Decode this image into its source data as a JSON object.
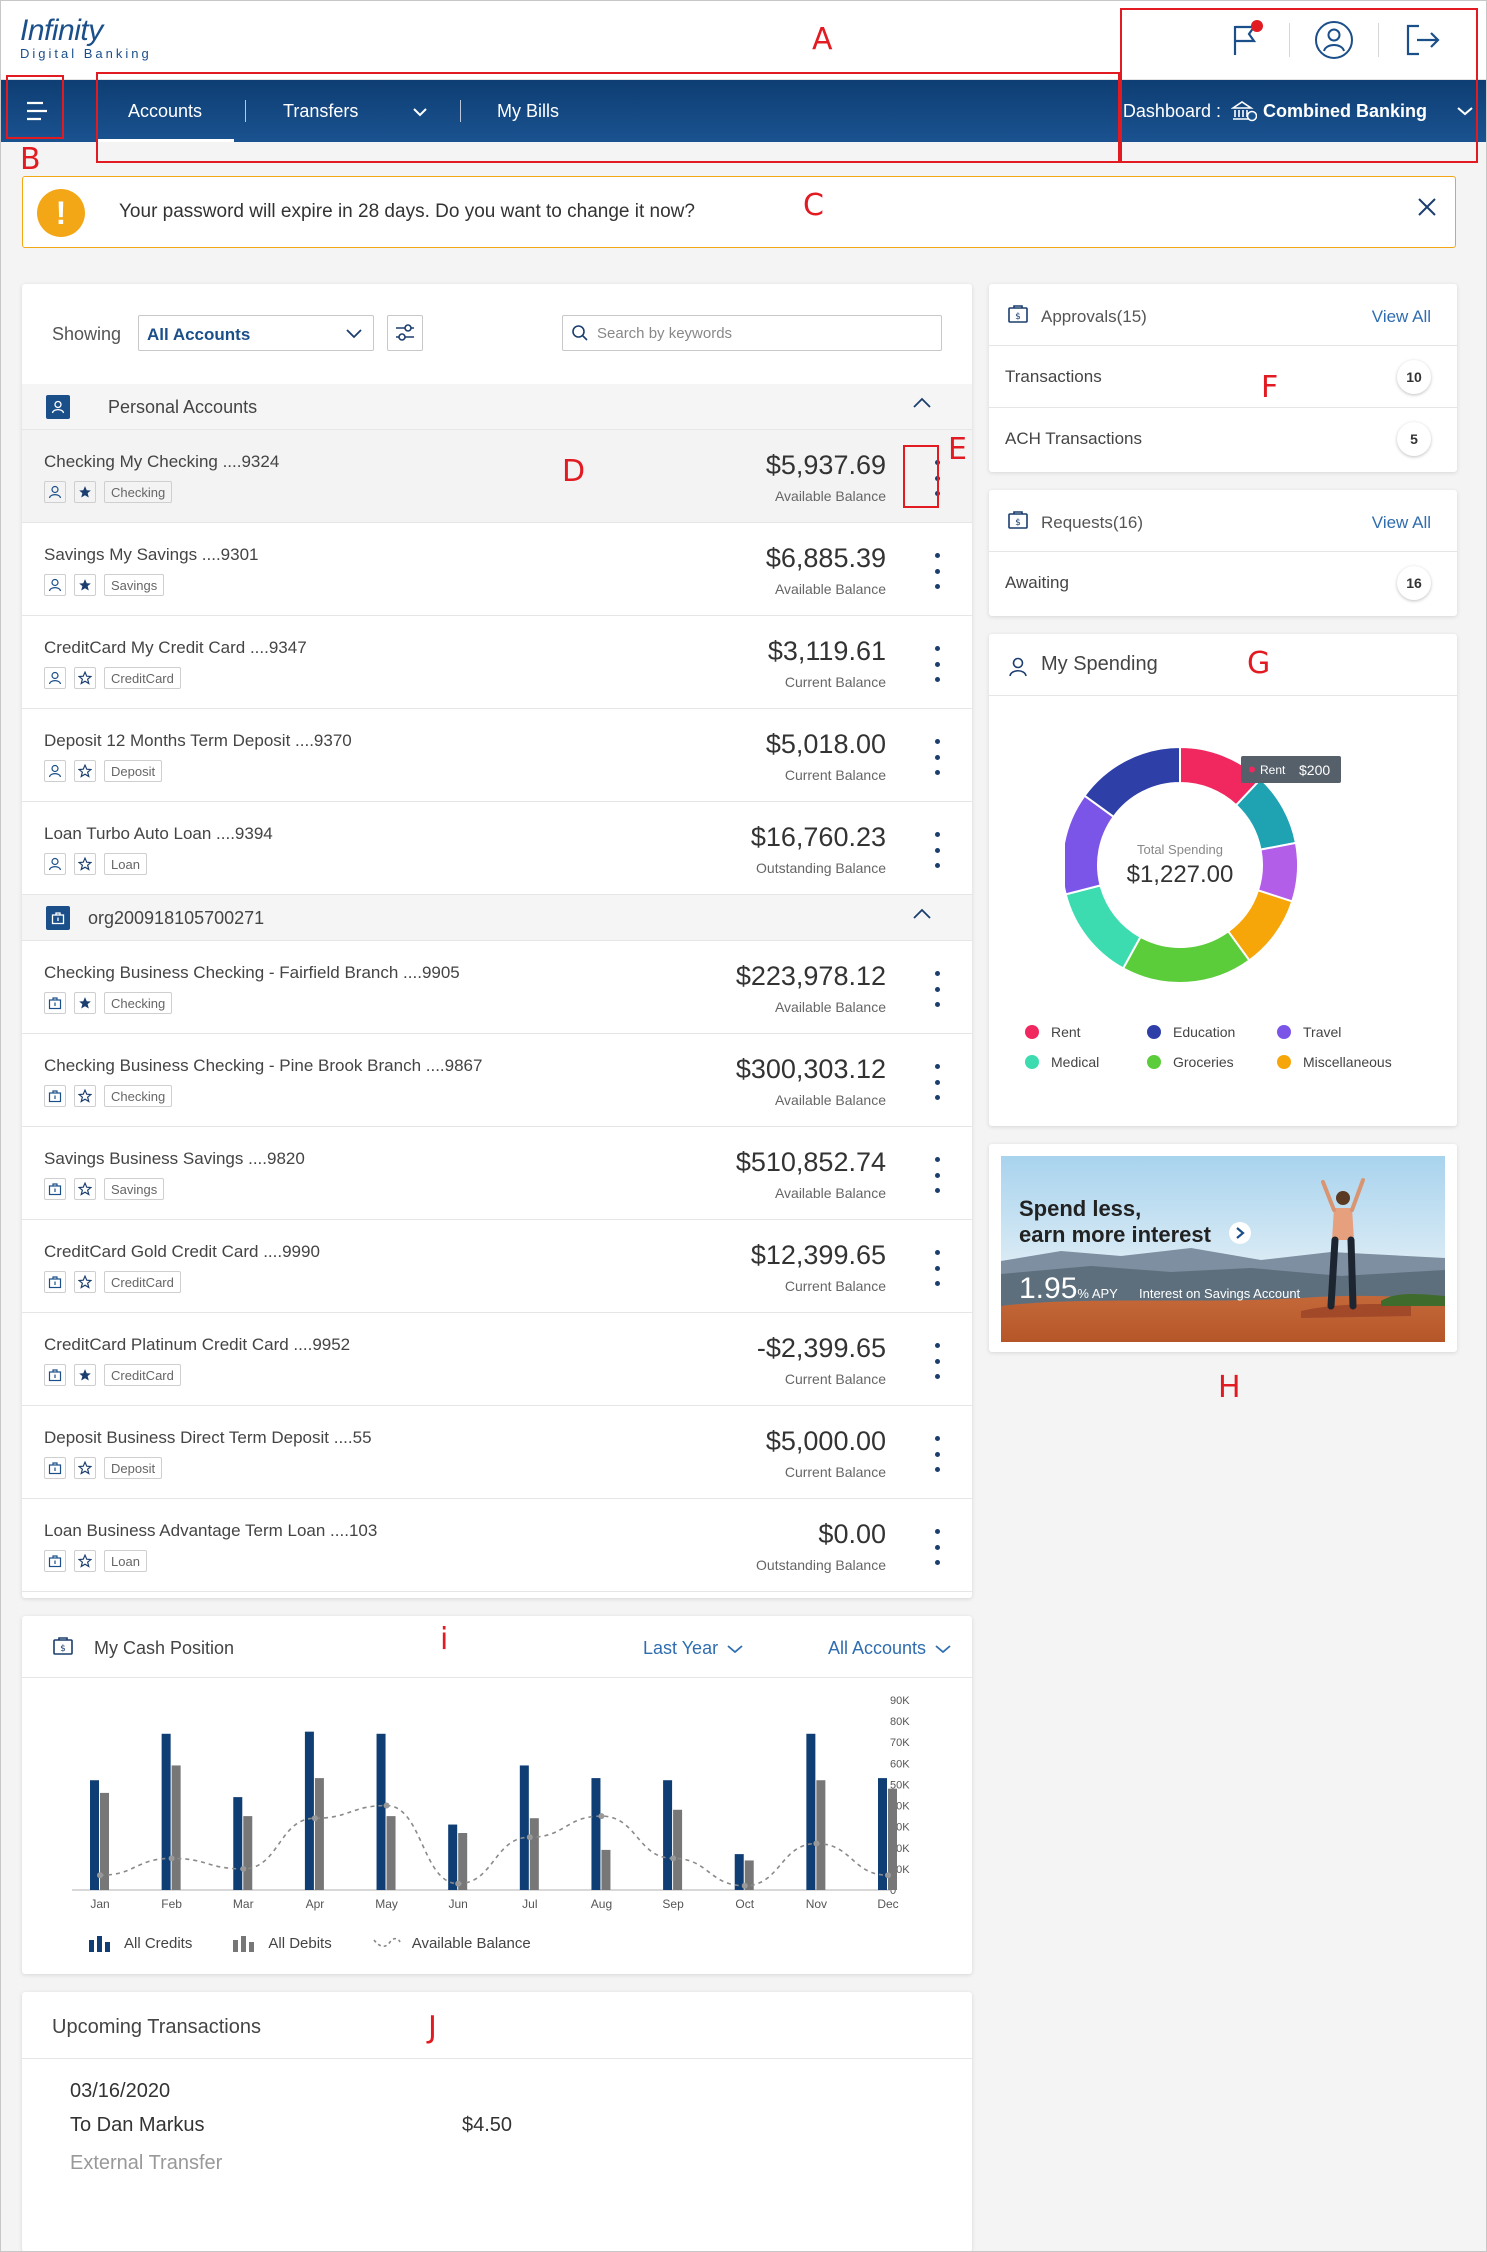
{
  "header": {
    "logo_main": "Infinity",
    "logo_sub": "Digital Banking"
  },
  "nav": {
    "accounts": "Accounts",
    "transfers": "Transfers",
    "my_bills": "My Bills",
    "dashboard_label": "Dashboard :",
    "dashboard_value": "Combined Banking"
  },
  "alert": {
    "text": "Your password will expire in 28 days. Do you want to change it now?"
  },
  "accounts": {
    "showing_label": "Showing",
    "filter_value": "All Accounts",
    "search_placeholder": "Search by keywords",
    "groups": [
      {
        "name": "Personal Accounts",
        "rows": [
          {
            "name": "Checking My Checking ....9324",
            "tag": "Checking",
            "amount": "$5,937.69",
            "balance_label": "Available Balance",
            "fav": true
          },
          {
            "name": "Savings My Savings ....9301",
            "tag": "Savings",
            "amount": "$6,885.39",
            "balance_label": "Available Balance",
            "fav": true
          },
          {
            "name": "CreditCard My Credit Card ....9347",
            "tag": "CreditCard",
            "amount": "$3,119.61",
            "balance_label": "Current Balance",
            "fav": false
          },
          {
            "name": "Deposit 12 Months Term Deposit ....9370",
            "tag": "Deposit",
            "amount": "$5,018.00",
            "balance_label": "Current Balance",
            "fav": false
          },
          {
            "name": "Loan Turbo Auto Loan ....9394",
            "tag": "Loan",
            "amount": "$16,760.23",
            "balance_label": "Outstanding Balance",
            "fav": false
          }
        ]
      },
      {
        "name": "org200918105700271",
        "rows": [
          {
            "name": "Checking Business Checking - Fairfield Branch ....9905",
            "tag": "Checking",
            "amount": "$223,978.12",
            "balance_label": "Available Balance",
            "fav": true
          },
          {
            "name": "Checking Business Checking - Pine Brook Branch ....9867",
            "tag": "Checking",
            "amount": "$300,303.12",
            "balance_label": "Available Balance",
            "fav": false
          },
          {
            "name": "Savings Business Savings ....9820",
            "tag": "Savings",
            "amount": "$510,852.74",
            "balance_label": "Available Balance",
            "fav": false
          },
          {
            "name": "CreditCard Gold Credit Card ....9990",
            "tag": "CreditCard",
            "amount": "$12,399.65",
            "balance_label": "Current Balance",
            "fav": false
          },
          {
            "name": "CreditCard Platinum Credit Card ....9952",
            "tag": "CreditCard",
            "amount": "-$2,399.65",
            "balance_label": "Current Balance",
            "fav": true
          },
          {
            "name": "Deposit Business Direct Term Deposit ....55",
            "tag": "Deposit",
            "amount": "$5,000.00",
            "balance_label": "Current Balance",
            "fav": false
          },
          {
            "name": "Loan Business Advantage Term Loan ....103",
            "tag": "Loan",
            "amount": "$0.00",
            "balance_label": "Outstanding Balance",
            "fav": false
          }
        ]
      }
    ]
  },
  "approvals": {
    "title": "Approvals(15)",
    "link": "View All",
    "rows": [
      {
        "label": "Transactions",
        "count": "10"
      },
      {
        "label": "ACH Transactions",
        "count": "5"
      }
    ]
  },
  "requests": {
    "title": "Requests(16)",
    "link": "View All",
    "rows": [
      {
        "label": "Awaiting",
        "count": "16"
      }
    ]
  },
  "spending": {
    "title": "My Spending",
    "total_label": "Total Spending",
    "total_value": "$1,227.00",
    "tooltip_label": "Rent",
    "tooltip_value": "$200",
    "legend": [
      {
        "name": "Rent",
        "color": "#f0285f"
      },
      {
        "name": "Education",
        "color": "#2e3fa8"
      },
      {
        "name": "Travel",
        "color": "#7b55e8"
      },
      {
        "name": "Medical",
        "color": "#3ddcb0"
      },
      {
        "name": "Groceries",
        "color": "#5bcc3a"
      },
      {
        "name": "Miscellaneous",
        "color": "#f6a609"
      }
    ]
  },
  "promo": {
    "line1": "Spend less,",
    "line2": "earn more interest",
    "rate": "1.95",
    "rate_unit": "% APY",
    "note": "Interest on Savings Account"
  },
  "cash": {
    "title": "My Cash Position",
    "period": "Last Year",
    "accounts": "All Accounts",
    "legend_credits": "All Credits",
    "legend_debits": "All Debits",
    "legend_balance": "Available Balance"
  },
  "chart_data": {
    "type": "bar",
    "categories": [
      "Jan",
      "Feb",
      "Mar",
      "Apr",
      "May",
      "Jun",
      "Jul",
      "Aug",
      "Sep",
      "Oct",
      "Nov",
      "Dec"
    ],
    "series": [
      {
        "name": "All Credits",
        "values": [
          52000,
          74000,
          44000,
          75000,
          74000,
          31000,
          59000,
          53000,
          52000,
          17000,
          74000,
          53000
        ]
      },
      {
        "name": "All Debits",
        "values": [
          46000,
          59000,
          35000,
          53000,
          35000,
          27000,
          34000,
          19000,
          38000,
          14000,
          52000,
          48000
        ]
      },
      {
        "name": "Available Balance",
        "values": [
          7000,
          15000,
          10000,
          34000,
          40000,
          3000,
          25000,
          35000,
          15000,
          2000,
          22000,
          7000
        ]
      }
    ],
    "yticks": [
      "0",
      "10K",
      "20K",
      "30K",
      "40K",
      "50K",
      "60K",
      "70K",
      "80K",
      "90K"
    ],
    "ylim": [
      0,
      90000
    ]
  },
  "upcoming": {
    "title": "Upcoming Transactions",
    "date": "03/16/2020",
    "to": "To  Dan Markus",
    "amount": "$4.50",
    "type": "External Transfer"
  },
  "annotations": [
    "A",
    "B",
    "C",
    "D",
    "E",
    "F",
    "G",
    "H",
    "i",
    "J"
  ]
}
